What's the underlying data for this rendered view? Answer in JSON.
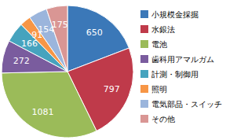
{
  "chart_data": {
    "type": "pie",
    "categories": [
      "小規模金採掘",
      "水銀法",
      "電池",
      "歯科用アマルガム",
      "計測・制御用",
      "照明",
      "電気部品・スイッチ",
      "その他"
    ],
    "values": [
      650,
      797,
      1081,
      272,
      166,
      91,
      154,
      175
    ],
    "colors": [
      "#3b78b8",
      "#bf3a4a",
      "#9bbb59",
      "#7a5c9e",
      "#46a3be",
      "#f79646",
      "#9bb5dc",
      "#d99694"
    ],
    "data_labels": true,
    "legend": "right"
  }
}
